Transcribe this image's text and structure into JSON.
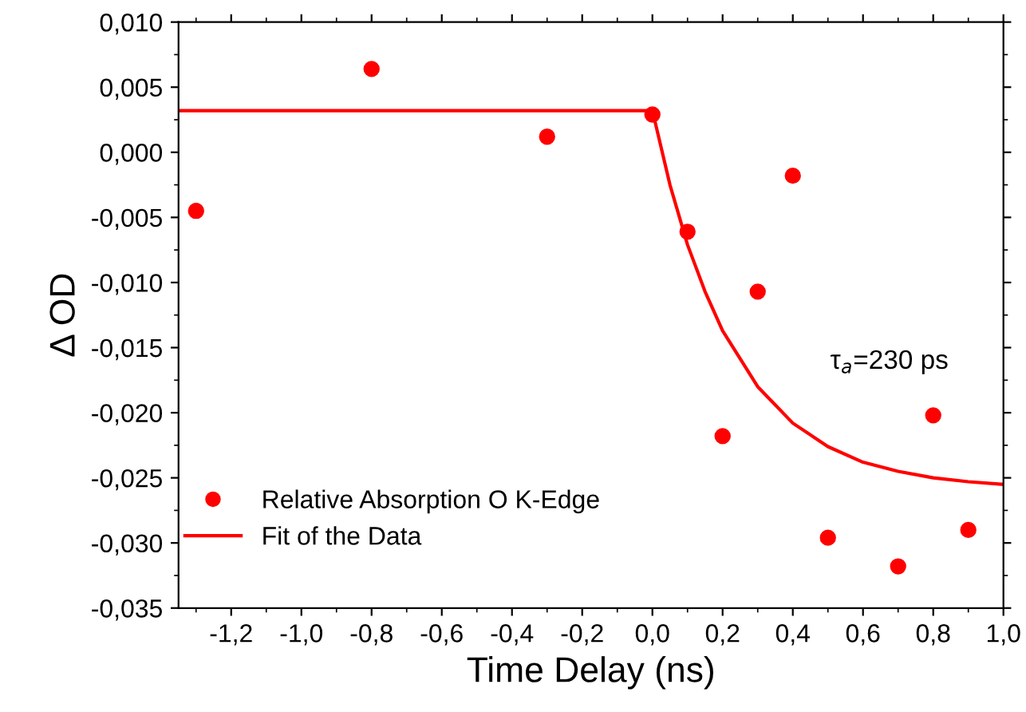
{
  "chart_data": {
    "type": "scatter",
    "xlabel": "Time Delay (ns)",
    "ylabel": "Δ OD",
    "xlim": [
      -1.35,
      1.0
    ],
    "ylim": [
      -0.035,
      0.01
    ],
    "xticks": [
      {
        "value": -1.2,
        "label": "-1,2"
      },
      {
        "value": -1.0,
        "label": "-1,0"
      },
      {
        "value": -0.8,
        "label": "-0,8"
      },
      {
        "value": -0.6,
        "label": "-0,6"
      },
      {
        "value": -0.4,
        "label": "-0,4"
      },
      {
        "value": -0.2,
        "label": "-0,2"
      },
      {
        "value": 0.0,
        "label": "0,0"
      },
      {
        "value": 0.2,
        "label": "0,2"
      },
      {
        "value": 0.4,
        "label": "0,4"
      },
      {
        "value": 0.6,
        "label": "0,6"
      },
      {
        "value": 0.8,
        "label": "0,8"
      },
      {
        "value": 1.0,
        "label": "1,0"
      }
    ],
    "yticks": [
      {
        "value": 0.01,
        "label": "0,010"
      },
      {
        "value": 0.005,
        "label": "0,005"
      },
      {
        "value": 0.0,
        "label": "0,000"
      },
      {
        "value": -0.005,
        "label": "-0,005"
      },
      {
        "value": -0.01,
        "label": "-0,010"
      },
      {
        "value": -0.015,
        "label": "-0,015"
      },
      {
        "value": -0.02,
        "label": "-0,020"
      },
      {
        "value": -0.025,
        "label": "-0,025"
      },
      {
        "value": -0.03,
        "label": "-0,030"
      },
      {
        "value": -0.035,
        "label": "-0,035"
      }
    ],
    "grid": false,
    "legend": "bottom left",
    "annotations": [
      "τ$_{a}$=230 ps"
    ],
    "series": [
      {
        "name": "Relative Absorption O K-Edge",
        "marker": "circle",
        "color": "#ff0000",
        "x": [
          -1.3,
          -0.8,
          -0.3,
          0.0,
          0.1,
          0.2,
          0.3,
          0.4,
          0.5,
          0.7,
          0.8,
          0.9
        ],
        "values": [
          -0.0045,
          0.0064,
          0.0012,
          0.0029,
          -0.0061,
          -0.0218,
          -0.0107,
          -0.0018,
          -0.0296,
          -0.0318,
          -0.0202,
          -0.029
        ]
      },
      {
        "name": "Fit of the Data",
        "type": "line",
        "marker": "none",
        "line_style": "solid",
        "color": "#ff0000",
        "x": [
          -1.35,
          0.0,
          0.05,
          0.1,
          0.15,
          0.2,
          0.3,
          0.4,
          0.5,
          0.6,
          0.7,
          0.8,
          0.9,
          1.0
        ],
        "values": [
          0.0032,
          0.0032,
          -0.0025,
          -0.0071,
          -0.0107,
          -0.0137,
          -0.018,
          -0.0208,
          -0.0226,
          -0.0238,
          -0.0245,
          -0.025,
          -0.0253,
          -0.0255
        ]
      }
    ]
  }
}
